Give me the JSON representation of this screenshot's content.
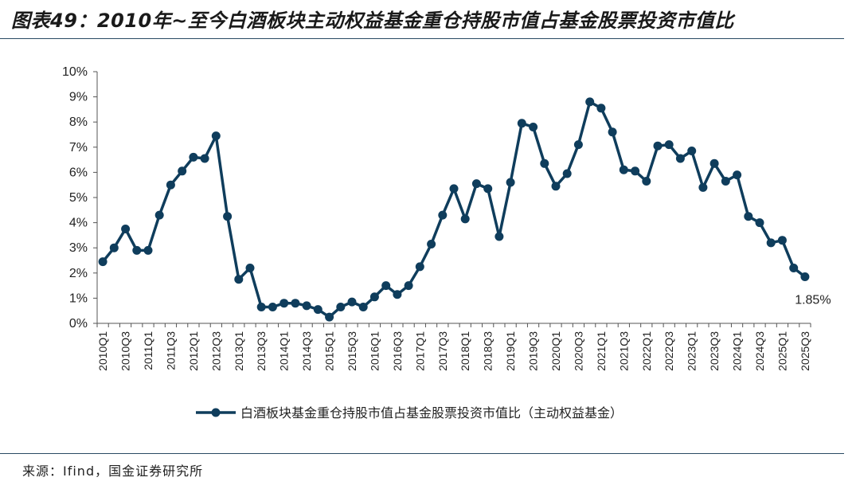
{
  "title": "图表49：2010年~至今白酒板块主动权益基金重仓持股市值占基金股票投资市值比",
  "source": "来源：Ifind，国金证券研究所",
  "colors": {
    "line": "#0f3d5c",
    "axis": "#555555",
    "text": "#222222",
    "rule": "#2a4a63"
  },
  "chart_data": {
    "type": "line",
    "categories": [
      "2010Q1",
      "2010Q2",
      "2010Q3",
      "2010Q4",
      "2011Q1",
      "2011Q2",
      "2011Q3",
      "2011Q4",
      "2012Q1",
      "2012Q2",
      "2012Q3",
      "2012Q4",
      "2013Q1",
      "2013Q2",
      "2013Q3",
      "2013Q4",
      "2014Q1",
      "2014Q2",
      "2014Q3",
      "2014Q4",
      "2015Q1",
      "2015Q2",
      "2015Q3",
      "2015Q4",
      "2016Q1",
      "2016Q2",
      "2016Q3",
      "2016Q4",
      "2017Q1",
      "2017Q2",
      "2017Q3",
      "2017Q4",
      "2018Q1",
      "2018Q2",
      "2018Q3",
      "2018Q4",
      "2019Q1",
      "2019Q2",
      "2019Q3",
      "2019Q4",
      "2020Q1",
      "2020Q2",
      "2020Q3",
      "2020Q4",
      "2021Q1",
      "2021Q2",
      "2021Q3",
      "2021Q4",
      "2022Q1",
      "2022Q2",
      "2022Q3",
      "2022Q4",
      "2023Q1",
      "2023Q2",
      "2023Q3",
      "2023Q4",
      "2024Q1",
      "2024Q2",
      "2024Q3",
      "2024Q4",
      "2025Q1",
      "2025Q2",
      "2025Q3"
    ],
    "tick_labels": [
      "2010Q1",
      "2010Q3",
      "2011Q1",
      "2011Q3",
      "2012Q1",
      "2012Q3",
      "2013Q1",
      "2013Q3",
      "2014Q1",
      "2014Q3",
      "2015Q1",
      "2015Q3",
      "2016Q1",
      "2016Q3",
      "2017Q1",
      "2017Q3",
      "2018Q1",
      "2018Q3",
      "2019Q1",
      "2019Q3",
      "2020Q1",
      "2020Q3",
      "2021Q1",
      "2021Q3",
      "2022Q1",
      "2022Q3",
      "2023Q1",
      "2023Q3",
      "2024Q1",
      "2024Q3",
      "2025Q1",
      "2025Q3"
    ],
    "series": [
      {
        "name": "白酒板块基金重仓持股市值占基金股票投资市值比（主动权益基金）",
        "values": [
          2.45,
          3.0,
          3.75,
          2.9,
          2.9,
          4.3,
          5.5,
          6.05,
          6.6,
          6.55,
          7.45,
          4.25,
          1.75,
          2.2,
          0.65,
          0.65,
          0.8,
          0.8,
          0.7,
          0.55,
          0.25,
          0.65,
          0.85,
          0.65,
          1.05,
          1.5,
          1.15,
          1.5,
          2.25,
          3.15,
          4.3,
          5.35,
          4.15,
          5.55,
          5.35,
          3.45,
          5.6,
          7.95,
          7.8,
          6.35,
          5.45,
          5.95,
          7.1,
          8.8,
          8.55,
          7.6,
          6.1,
          6.05,
          5.65,
          7.05,
          7.1,
          6.55,
          6.85,
          5.4,
          6.35,
          5.65,
          5.9,
          4.25,
          4.0,
          3.2,
          3.3,
          2.2,
          1.85
        ]
      }
    ],
    "y_ticks": [
      "0%",
      "1%",
      "2%",
      "3%",
      "4%",
      "5%",
      "6%",
      "7%",
      "8%",
      "9%",
      "10%"
    ],
    "ylim": [
      0,
      10
    ],
    "annotation": "1.85%",
    "legend_position": "bottom-center",
    "grid": false
  }
}
